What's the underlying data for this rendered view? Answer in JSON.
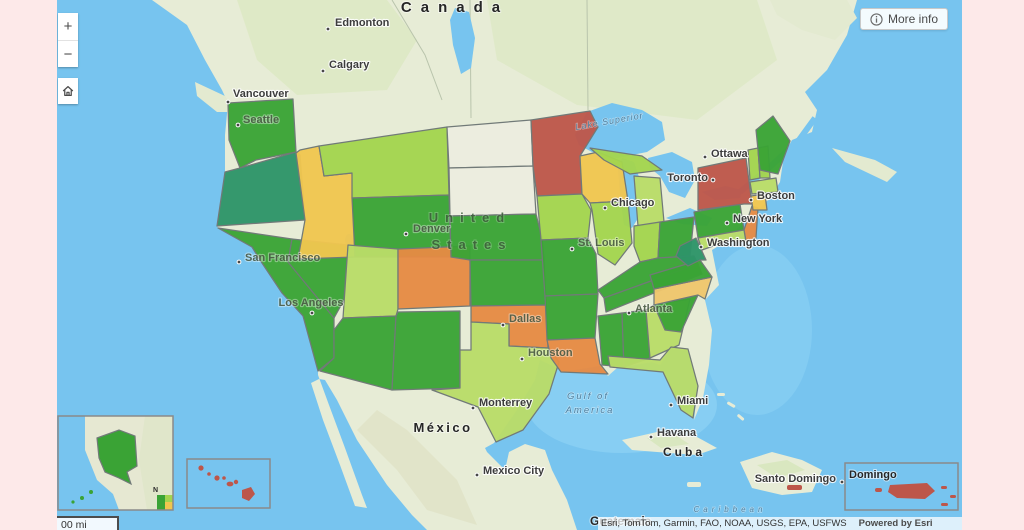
{
  "ui": {
    "zoom_in_label": "+",
    "zoom_out_label": "−",
    "more_info_label": "More info",
    "scale_label": "00 mi",
    "attribution_sources": "Esri, TomTom, Garmin, FAO, NOAA, USGS, EPA, USFWS",
    "attribution_powered": "Powered by Esri"
  },
  "palette": {
    "green": "#3aa335",
    "teal": "#2e9468",
    "lightgreen": "#a3d44e",
    "lime": "#b9dc68",
    "yellow": "#f0c64f",
    "tan": "#efc66c",
    "orange": "#e68a44",
    "red": "#bd564a",
    "beige": "#ececdf",
    "ocean": "#77c4ef",
    "land": "#e7ecd6",
    "frame_pink": "#fde9e9"
  },
  "map": {
    "country_labels": [
      {
        "id": "canada",
        "text": "Canada"
      },
      {
        "id": "united-states",
        "lines": [
          "United",
          "States"
        ]
      },
      {
        "id": "mexico",
        "text": "México"
      },
      {
        "id": "cuba",
        "text": "Cuba"
      },
      {
        "id": "guatemala",
        "text": "Guatemala"
      }
    ],
    "sea_labels": [
      {
        "id": "lake-superior",
        "text": "Lake Superior"
      },
      {
        "id": "gulf-of-america",
        "lines": [
          "Gulf of",
          "America"
        ]
      },
      {
        "id": "caribbean",
        "text": "Caribbean"
      }
    ],
    "cities": [
      {
        "id": "edmonton",
        "name": "Edmonton"
      },
      {
        "id": "calgary",
        "name": "Calgary"
      },
      {
        "id": "vancouver",
        "name": "Vancouver"
      },
      {
        "id": "seattle",
        "name": "Seattle"
      },
      {
        "id": "san-francisco",
        "name": "San Francisco"
      },
      {
        "id": "los-angeles",
        "name": "Los Angeles"
      },
      {
        "id": "denver",
        "name": "Denver"
      },
      {
        "id": "chicago",
        "name": "Chicago"
      },
      {
        "id": "st-louis",
        "name": "St. Louis"
      },
      {
        "id": "dallas",
        "name": "Dallas"
      },
      {
        "id": "houston",
        "name": "Houston"
      },
      {
        "id": "toronto",
        "name": "Toronto"
      },
      {
        "id": "ottawa",
        "name": "Ottawa"
      },
      {
        "id": "boston",
        "name": "Boston"
      },
      {
        "id": "new-york",
        "name": "New York"
      },
      {
        "id": "washington",
        "name": "Washington"
      },
      {
        "id": "atlanta",
        "name": "Atlanta"
      },
      {
        "id": "miami",
        "name": "Miami"
      },
      {
        "id": "havana",
        "name": "Havana"
      },
      {
        "id": "monterrey",
        "name": "Monterrey"
      },
      {
        "id": "mexico-city",
        "name": "Mexico City"
      },
      {
        "id": "santo-domingo",
        "name": "Santo Domingo"
      }
    ],
    "inset_labels": [
      {
        "id": "domingo",
        "text": "Domingo"
      },
      {
        "id": "alaska-n",
        "text": "N"
      }
    ],
    "states": [
      {
        "id": "WA",
        "category": "green"
      },
      {
        "id": "OR",
        "category": "teal"
      },
      {
        "id": "CA",
        "category": "green"
      },
      {
        "id": "NV",
        "category": "green"
      },
      {
        "id": "ID",
        "category": "yellow"
      },
      {
        "id": "MT",
        "category": "lightgreen"
      },
      {
        "id": "WY",
        "category": "green"
      },
      {
        "id": "UT",
        "category": "lime"
      },
      {
        "id": "CO",
        "category": "orange"
      },
      {
        "id": "AZ",
        "category": "green"
      },
      {
        "id": "NM",
        "category": "green"
      },
      {
        "id": "ND",
        "category": "beige"
      },
      {
        "id": "SD",
        "category": "beige"
      },
      {
        "id": "NE",
        "category": "green"
      },
      {
        "id": "KS",
        "category": "green"
      },
      {
        "id": "OK",
        "category": "orange"
      },
      {
        "id": "TX",
        "category": "lime"
      },
      {
        "id": "MN",
        "category": "red"
      },
      {
        "id": "IA",
        "category": "lightgreen"
      },
      {
        "id": "MO",
        "category": "green"
      },
      {
        "id": "AR",
        "category": "green"
      },
      {
        "id": "LA",
        "category": "orange"
      },
      {
        "id": "WI",
        "category": "yellow"
      },
      {
        "id": "IL",
        "category": "lightgreen"
      },
      {
        "id": "MIUP",
        "category": "lightgreen"
      },
      {
        "id": "MI",
        "category": "lime"
      },
      {
        "id": "IN",
        "category": "lightgreen"
      },
      {
        "id": "OH",
        "category": "green"
      },
      {
        "id": "KY",
        "category": "green"
      },
      {
        "id": "TN",
        "category": "green"
      },
      {
        "id": "MS",
        "category": "green"
      },
      {
        "id": "AL",
        "category": "green"
      },
      {
        "id": "GA",
        "category": "lime"
      },
      {
        "id": "FL",
        "category": "lime"
      },
      {
        "id": "SC",
        "category": "green"
      },
      {
        "id": "NC",
        "category": "tan"
      },
      {
        "id": "VA",
        "category": "green"
      },
      {
        "id": "WV",
        "category": "teal"
      },
      {
        "id": "PA",
        "category": "green"
      },
      {
        "id": "NY",
        "category": "red"
      },
      {
        "id": "NJ",
        "category": "orange"
      },
      {
        "id": "MD",
        "category": "lime"
      },
      {
        "id": "VT",
        "category": "lightgreen"
      },
      {
        "id": "NH",
        "category": "lightgreen"
      },
      {
        "id": "MA",
        "category": "lime"
      },
      {
        "id": "CT",
        "category": "yellow"
      },
      {
        "id": "ME",
        "category": "green"
      },
      {
        "id": "AK",
        "category": "green"
      },
      {
        "id": "HI",
        "category": "red"
      },
      {
        "id": "PR",
        "category": "red"
      }
    ]
  }
}
